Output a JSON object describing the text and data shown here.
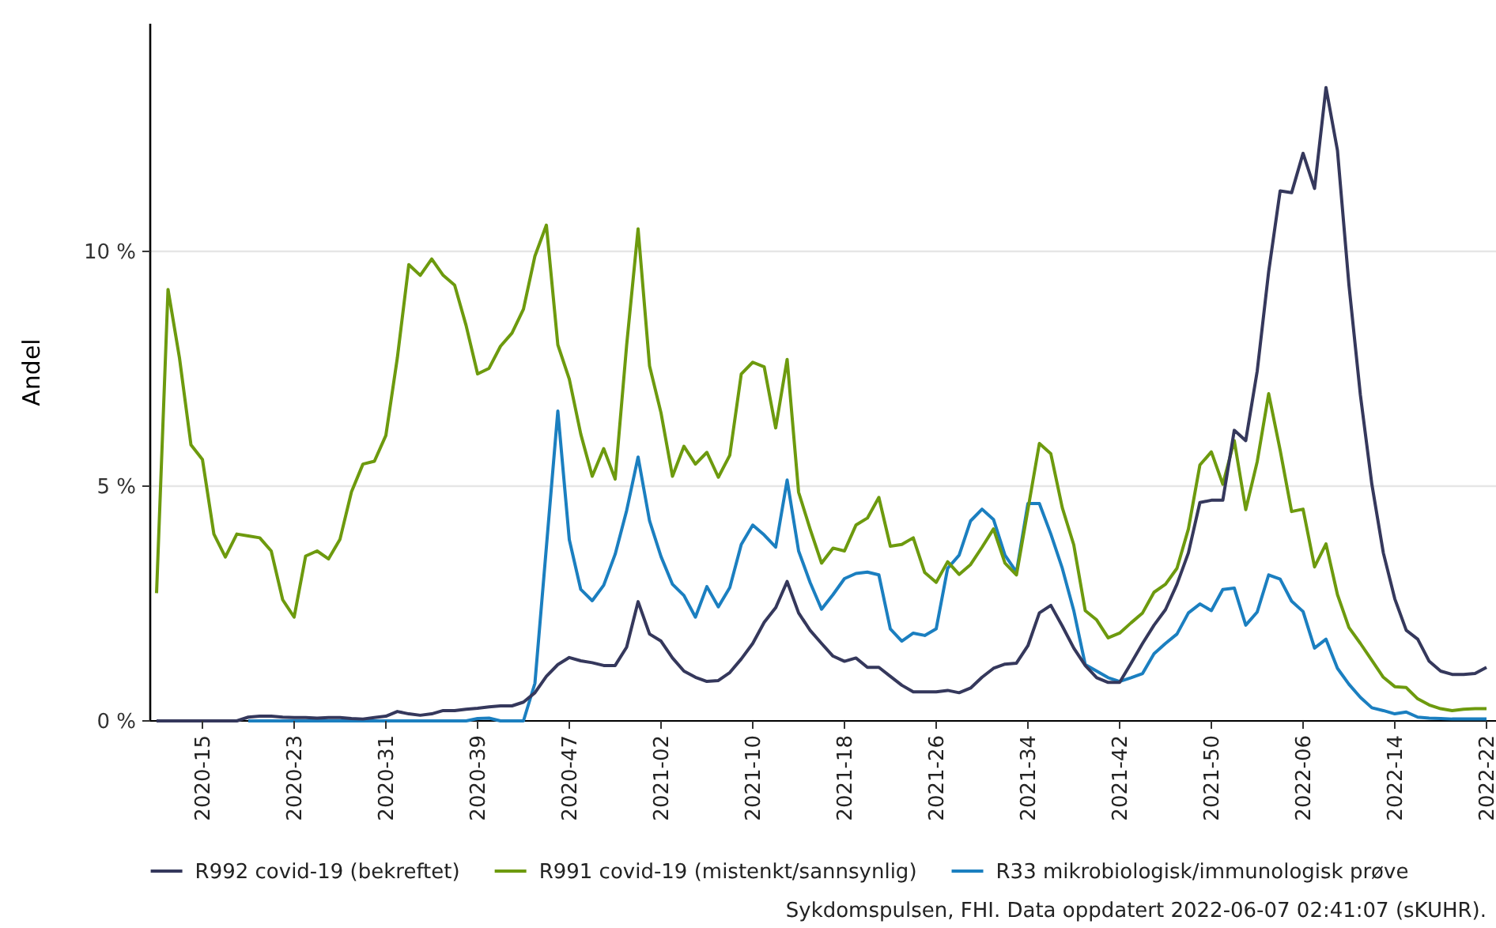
{
  "chart_data": {
    "type": "line",
    "ylabel": "Andel",
    "annotations": [
      "Sykdomspulsen, FHI. Data oppdatert 2022-06-07 02:41:07 (sKUHR)."
    ],
    "categories": [
      null,
      null,
      null,
      null,
      "2020-15",
      null,
      null,
      null,
      null,
      null,
      null,
      null,
      "2020-23",
      null,
      null,
      null,
      null,
      null,
      null,
      null,
      "2020-31",
      null,
      null,
      null,
      null,
      null,
      null,
      null,
      "2020-39",
      null,
      null,
      null,
      null,
      null,
      null,
      null,
      "2020-47",
      null,
      null,
      null,
      null,
      null,
      null,
      null,
      "2021-02",
      null,
      null,
      null,
      null,
      null,
      null,
      null,
      "2021-10",
      null,
      null,
      null,
      null,
      null,
      null,
      null,
      "2021-18",
      null,
      null,
      null,
      null,
      null,
      null,
      null,
      "2021-26",
      null,
      null,
      null,
      null,
      null,
      null,
      null,
      "2021-34",
      null,
      null,
      null,
      null,
      null,
      null,
      null,
      "2021-42",
      null,
      null,
      null,
      null,
      null,
      null,
      null,
      "2021-50",
      null,
      null,
      null,
      null,
      null,
      null,
      null,
      "2022-06",
      null,
      null,
      null,
      null,
      null,
      null,
      null,
      "2022-14",
      null,
      null,
      null,
      null,
      null,
      null,
      null,
      "2022-22"
    ],
    "series": [
      {
        "name": "R992 covid-19 (bekreftet)",
        "color": "#35385c",
        "values": [
          0,
          0,
          0,
          0,
          0,
          0,
          0,
          0,
          0.08,
          0.1,
          0.1,
          0.08,
          0.07,
          0.07,
          0.06,
          0.07,
          0.07,
          0.05,
          0.04,
          0.07,
          0.1,
          0.2,
          0.15,
          0.12,
          0.15,
          0.22,
          0.22,
          0.25,
          0.27,
          0.3,
          0.32,
          0.32,
          0.4,
          0.6,
          0.95,
          1.2,
          1.35,
          1.28,
          1.24,
          1.18,
          1.18,
          1.57,
          2.54,
          1.85,
          1.7,
          1.34,
          1.06,
          0.93,
          0.84,
          0.86,
          1.03,
          1.32,
          1.65,
          2.1,
          2.41,
          2.97,
          2.3,
          1.93,
          1.65,
          1.38,
          1.27,
          1.34,
          1.14,
          1.14,
          0.95,
          0.76,
          0.62,
          0.62,
          0.62,
          0.65,
          0.6,
          0.7,
          0.93,
          1.12,
          1.21,
          1.23,
          1.6,
          2.3,
          2.46,
          2.02,
          1.55,
          1.18,
          0.92,
          0.82,
          0.82,
          1.23,
          1.65,
          2.04,
          2.37,
          2.91,
          3.58,
          4.65,
          4.7,
          4.7,
          6.19,
          5.97,
          7.45,
          9.57,
          11.29,
          11.25,
          12.09,
          11.34,
          13.49,
          12.15,
          9.29,
          6.94,
          5.04,
          3.58,
          2.6,
          1.93,
          1.74,
          1.27,
          1.06,
          0.99,
          0.99,
          1.01,
          1.14
        ]
      },
      {
        "name": "R991 covid-19 (mistenkt/sannsynlig)",
        "color": "#6d9a0e",
        "values": [
          2.72,
          9.19,
          7.73,
          5.88,
          5.57,
          3.98,
          3.49,
          3.98,
          3.94,
          3.9,
          3.62,
          2.58,
          2.21,
          3.51,
          3.62,
          3.45,
          3.87,
          4.88,
          5.47,
          5.53,
          6.08,
          7.73,
          9.72,
          9.49,
          9.84,
          9.49,
          9.28,
          8.42,
          7.39,
          7.51,
          7.98,
          8.26,
          8.77,
          9.9,
          10.56,
          8.01,
          7.28,
          6.11,
          5.21,
          5.8,
          5.15,
          8.0,
          10.48,
          7.56,
          6.56,
          5.21,
          5.85,
          5.47,
          5.72,
          5.19,
          5.66,
          7.39,
          7.64,
          7.54,
          6.24,
          7.7,
          4.87,
          4.09,
          3.36,
          3.68,
          3.62,
          4.17,
          4.32,
          4.76,
          3.72,
          3.76,
          3.9,
          3.16,
          2.95,
          3.39,
          3.12,
          3.33,
          3.7,
          4.09,
          3.36,
          3.11,
          4.5,
          5.91,
          5.69,
          4.54,
          3.75,
          2.35,
          2.15,
          1.77,
          1.87,
          2.09,
          2.3,
          2.74,
          2.91,
          3.25,
          4.09,
          5.45,
          5.73,
          5.04,
          5.97,
          4.5,
          5.52,
          6.97,
          5.77,
          4.46,
          4.51,
          3.28,
          3.77,
          2.69,
          1.99,
          1.65,
          1.29,
          0.93,
          0.73,
          0.71,
          0.47,
          0.34,
          0.26,
          0.22,
          0.25,
          0.26,
          0.26
        ]
      },
      {
        "name": "R33 mikrobiologisk/immunologisk prøve",
        "color": "#1b7fc0",
        "values": [
          null,
          null,
          null,
          null,
          null,
          null,
          null,
          null,
          0,
          0,
          0,
          0,
          0,
          0,
          0,
          0,
          0,
          0,
          0,
          0,
          0,
          0,
          0,
          0,
          0,
          0,
          0,
          0,
          0.05,
          0.06,
          0,
          0,
          0,
          0.8,
          3.7,
          6.6,
          3.86,
          2.8,
          2.56,
          2.89,
          3.55,
          4.48,
          5.62,
          4.26,
          3.5,
          2.91,
          2.67,
          2.21,
          2.86,
          2.43,
          2.84,
          3.76,
          4.17,
          3.96,
          3.7,
          5.13,
          3.62,
          2.95,
          2.38,
          2.69,
          3.03,
          3.14,
          3.17,
          3.11,
          1.96,
          1.7,
          1.87,
          1.82,
          1.96,
          3.25,
          3.53,
          4.26,
          4.51,
          4.29,
          3.53,
          3.17,
          4.63,
          4.63,
          3.98,
          3.25,
          2.35,
          1.2,
          1.06,
          0.92,
          0.84,
          0.92,
          1.01,
          1.43,
          1.65,
          1.85,
          2.3,
          2.49,
          2.35,
          2.8,
          2.83,
          2.04,
          2.32,
          3.11,
          3.02,
          2.55,
          2.33,
          1.55,
          1.74,
          1.12,
          0.78,
          0.5,
          0.28,
          0.22,
          0.15,
          0.19,
          0.08,
          0.06,
          0.05,
          0.04,
          0.04,
          0.04,
          0.04
        ]
      }
    ],
    "ylim": [
      0,
      14.85
    ],
    "yticks": [
      {
        "value": 0,
        "label": "0 %"
      },
      {
        "value": 5,
        "label": "5 %"
      },
      {
        "value": 10,
        "label": "10 %"
      }
    ],
    "grid": "y",
    "legend": "bottom",
    "line_style": "solid",
    "marker": "none"
  }
}
